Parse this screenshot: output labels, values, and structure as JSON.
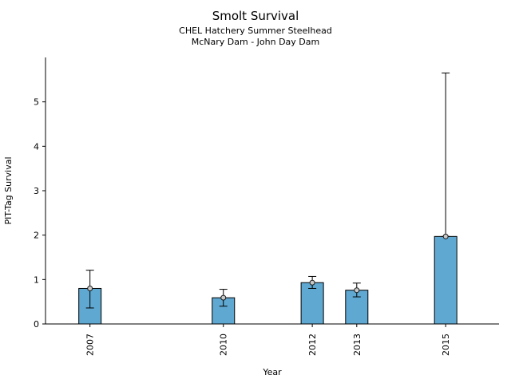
{
  "chart_data": {
    "type": "bar",
    "title": "Smolt Survival",
    "subtitle1": "CHEL Hatchery Summer Steelhead",
    "subtitle2": "McNary Dam - John Day Dam",
    "xlabel": "Year",
    "ylabel": "PIT-Tag Survival",
    "categories": [
      2007,
      2010,
      2012,
      2013,
      2015
    ],
    "values": [
      0.8,
      0.59,
      0.93,
      0.76,
      1.97
    ],
    "error_low": [
      0.36,
      0.4,
      0.8,
      0.61,
      1.97
    ],
    "error_high": [
      1.21,
      0.78,
      1.07,
      0.92,
      5.65
    ],
    "yticks": [
      0,
      1,
      2,
      3,
      4,
      5
    ],
    "ylim": [
      0,
      6.0
    ],
    "xlim": [
      2006.0,
      2016.2
    ],
    "grid": false,
    "legend": "none",
    "bar_color": "#5FA8D1",
    "bar_edge_color": "#000000",
    "error_color": "#000000",
    "marker_fill": "#c9c9c9",
    "marker_edge": "#1a1a1a"
  }
}
